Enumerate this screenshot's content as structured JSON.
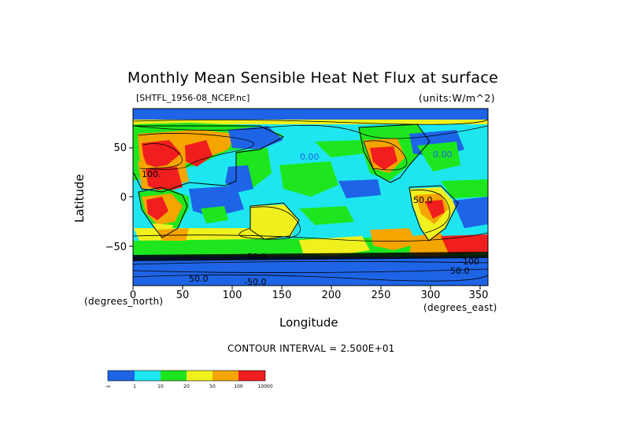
{
  "title": "Monthly Mean Sensible Heat Net Flux at surface",
  "file_label": "[SHTFL_1956-08_NCEP.nc]",
  "units_label": "(units:W/m^2)",
  "x_axis": {
    "title": "Longitude",
    "units": "(degrees_east)",
    "ticks": [
      "0",
      "50",
      "100",
      "150",
      "200",
      "250",
      "300",
      "350"
    ],
    "range": [
      0,
      357.5
    ]
  },
  "y_axis": {
    "title": "Latitude",
    "units": "(degrees_north)",
    "ticks": [
      "50",
      "0",
      "−50"
    ],
    "range": [
      -90,
      90
    ]
  },
  "contour_interval": "CONTOUR INTERVAL = 2.500E+01",
  "contour_labels": [
    "0.00",
    "0.00",
    "50.0",
    "50.0",
    "50.0",
    "-50.0",
    "-50.0",
    "100.",
    "-100"
  ],
  "colorbar": {
    "labels": [
      "-∞",
      "1",
      "10",
      "20",
      "50",
      "100",
      "10000"
    ],
    "colors": [
      "#1e64e6",
      "#1ee6f0",
      "#1ee61e",
      "#f0f01e",
      "#f5a500",
      "#f01e1e"
    ]
  },
  "colors": {
    "ocean": "#1ee6f0",
    "low": "#1e64e6",
    "mid": "#1ee61e",
    "warm": "#f0f01e",
    "hot": "#f5a500",
    "very_hot": "#f01e1e"
  }
}
